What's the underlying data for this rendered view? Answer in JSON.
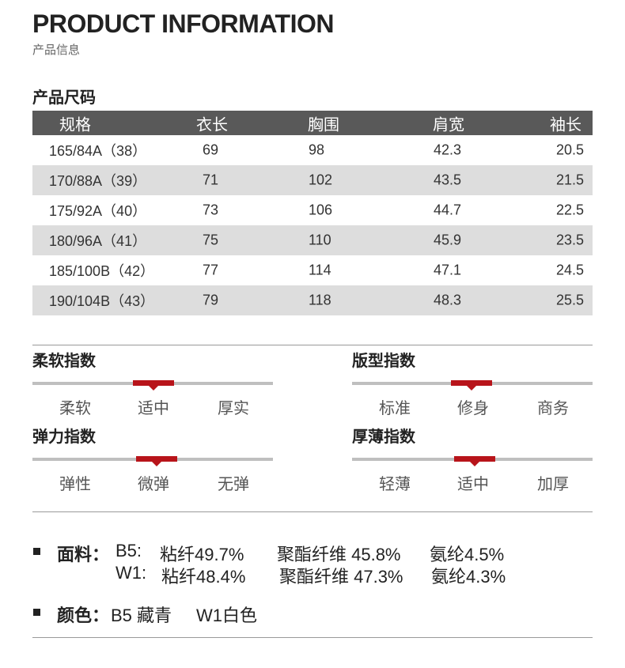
{
  "header": {
    "title_en": "PRODUCT INFORMATION",
    "title_cn": "产品信息"
  },
  "size_section": {
    "title": "产品尺码",
    "columns": [
      "规格",
      "衣长",
      "胸围",
      "肩宽",
      "袖长"
    ],
    "rows": [
      [
        "165/84A（38）",
        "69",
        "98",
        "42.3",
        "20.5"
      ],
      [
        "170/88A（39）",
        "71",
        "102",
        "43.5",
        "21.5"
      ],
      [
        "175/92A（40）",
        "73",
        "106",
        "44.7",
        "22.5"
      ],
      [
        "180/96A（41）",
        "75",
        "110",
        "45.9",
        "23.5"
      ],
      [
        "185/100B（42）",
        "77",
        "114",
        "47.1",
        "24.5"
      ],
      [
        "190/104B（43）",
        "79",
        "118",
        "48.3",
        "25.5"
      ]
    ]
  },
  "indices": {
    "softness": {
      "title": "柔软指数",
      "options": [
        "柔软",
        "适中",
        "厚实"
      ],
      "selected": "适中"
    },
    "fit": {
      "title": "版型指数",
      "options": [
        "标准",
        "修身",
        "商务"
      ],
      "selected": "修身"
    },
    "elasticity": {
      "title": "弹力指数",
      "options": [
        "弹性",
        "微弹",
        "无弹"
      ],
      "selected": "微弹"
    },
    "thickness": {
      "title": "厚薄指数",
      "options": [
        "轻薄",
        "适中",
        "加厚"
      ],
      "selected": "适中"
    }
  },
  "fabric": {
    "label": "面料：",
    "lines": [
      {
        "code": "B5:",
        "part1": "粘纤49.7%",
        "part2": "聚酯纤维 45.8%",
        "part3": "氨纶4.5%"
      },
      {
        "code": "W1:",
        "part1": "粘纤48.4%",
        "part2": "聚酯纤维 47.3%",
        "part3": "氨纶4.3%"
      }
    ]
  },
  "color": {
    "label": "颜色：",
    "value1": "B5 藏青",
    "value2": "W1白色"
  },
  "colors": {
    "header_bg": "#595959",
    "row_shade": "#dddddd",
    "accent": "#b8141a",
    "track": "#bfbfbf"
  }
}
